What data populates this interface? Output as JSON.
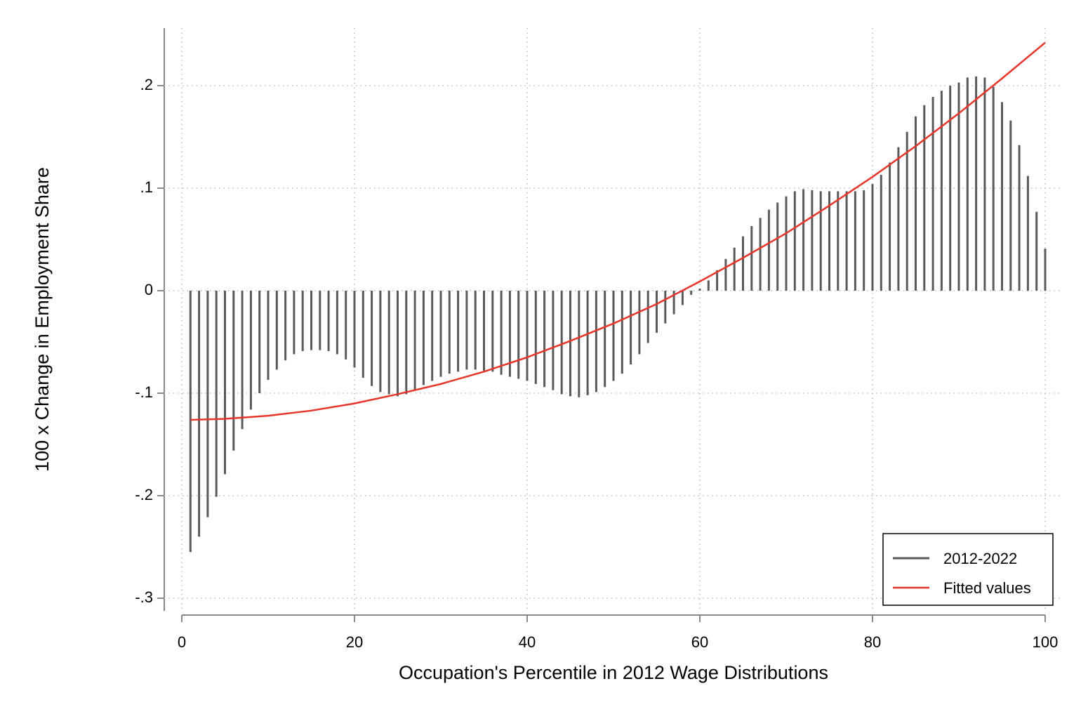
{
  "chart_data": {
    "type": "spike",
    "x_label": "Occupation's Percentile in 2012 Wage Distributions",
    "y_label": "100 x Change in Employment Share",
    "xlim": [
      0,
      100
    ],
    "xticks": [
      0,
      20,
      40,
      60,
      80,
      100
    ],
    "ylim": [
      -0.3,
      0.2
    ],
    "yticks": [
      {
        "value": -0.3,
        "label": "-.3"
      },
      {
        "value": -0.2,
        "label": "-.2"
      },
      {
        "value": -0.1,
        "label": "-.1"
      },
      0,
      {
        "value": 0.1,
        "label": ".1"
      },
      {
        "value": 0.2,
        "label": ".2"
      }
    ],
    "grid": true,
    "legend": "bottom-right",
    "series": [
      {
        "name": "2012-2022",
        "color": "#5a5a5a",
        "style": "spike",
        "x": [
          1,
          2,
          3,
          4,
          5,
          6,
          7,
          8,
          9,
          10,
          11,
          12,
          13,
          14,
          15,
          16,
          17,
          18,
          19,
          20,
          21,
          22,
          23,
          24,
          25,
          26,
          27,
          28,
          29,
          30,
          31,
          32,
          33,
          34,
          35,
          36,
          37,
          38,
          39,
          40,
          41,
          42,
          43,
          44,
          45,
          46,
          47,
          48,
          49,
          50,
          51,
          52,
          53,
          54,
          55,
          56,
          57,
          58,
          59,
          60,
          61,
          62,
          63,
          64,
          65,
          66,
          67,
          68,
          69,
          70,
          71,
          72,
          73,
          74,
          75,
          76,
          77,
          78,
          79,
          80,
          81,
          82,
          83,
          84,
          85,
          86,
          87,
          88,
          89,
          90,
          91,
          92,
          93,
          94,
          95,
          96,
          97,
          98,
          99,
          100
        ],
        "values": [
          -0.255,
          -0.24,
          -0.221,
          -0.201,
          -0.179,
          -0.156,
          -0.135,
          -0.116,
          -0.1,
          -0.087,
          -0.077,
          -0.068,
          -0.062,
          -0.059,
          -0.058,
          -0.058,
          -0.059,
          -0.062,
          -0.067,
          -0.075,
          -0.085,
          -0.093,
          -0.099,
          -0.101,
          -0.103,
          -0.101,
          -0.097,
          -0.092,
          -0.088,
          -0.084,
          -0.081,
          -0.079,
          -0.077,
          -0.077,
          -0.078,
          -0.079,
          -0.082,
          -0.084,
          -0.086,
          -0.088,
          -0.091,
          -0.094,
          -0.097,
          -0.101,
          -0.103,
          -0.104,
          -0.102,
          -0.099,
          -0.094,
          -0.088,
          -0.081,
          -0.072,
          -0.062,
          -0.051,
          -0.041,
          -0.032,
          -0.023,
          -0.014,
          -0.004,
          0.002,
          0.01,
          0.02,
          0.031,
          0.042,
          0.053,
          0.063,
          0.071,
          0.079,
          0.086,
          0.092,
          0.097,
          0.099,
          0.098,
          0.097,
          0.097,
          0.097,
          0.097,
          0.097,
          0.098,
          0.104,
          0.113,
          0.125,
          0.14,
          0.155,
          0.17,
          0.181,
          0.189,
          0.195,
          0.2,
          0.203,
          0.208,
          0.209,
          0.208,
          0.199,
          0.184,
          0.166,
          0.142,
          0.112,
          0.077,
          0.041
        ]
      },
      {
        "name": "Fitted values",
        "color": "#e8352a",
        "style": "line",
        "x": [
          1,
          5,
          10,
          15,
          20,
          25,
          30,
          35,
          40,
          45,
          50,
          55,
          60,
          65,
          70,
          75,
          80,
          85,
          90,
          95,
          100
        ],
        "values": [
          -0.126,
          -0.125,
          -0.122,
          -0.117,
          -0.11,
          -0.101,
          -0.091,
          -0.079,
          -0.065,
          -0.049,
          -0.032,
          -0.013,
          0.009,
          0.032,
          0.056,
          0.083,
          0.111,
          0.141,
          0.173,
          0.207,
          0.242
        ]
      }
    ]
  }
}
